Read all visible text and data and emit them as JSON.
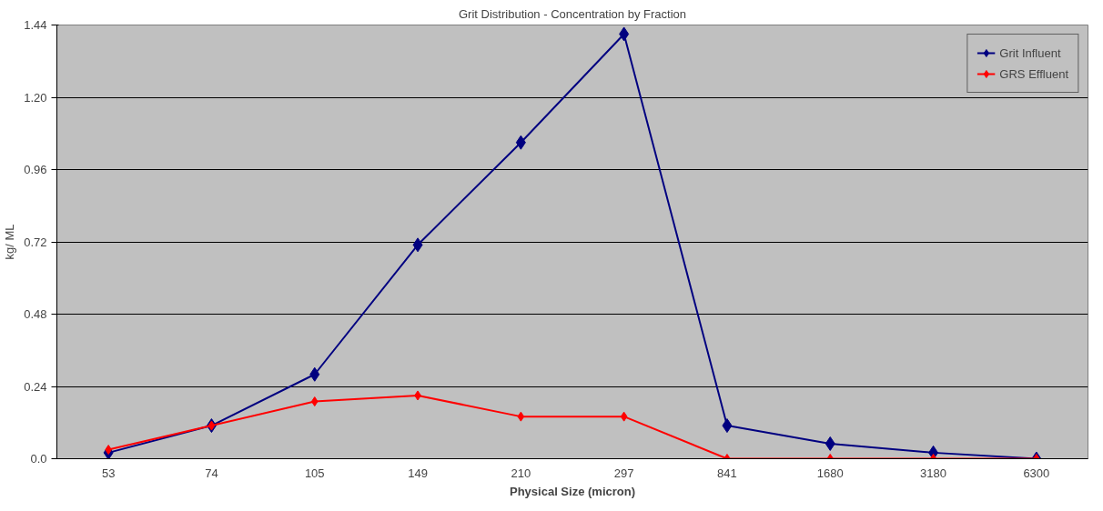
{
  "chart_data": {
    "type": "line",
    "title": "Grit Distribution - Concentration by Fraction",
    "xlabel": "Physical Size (micron)",
    "ylabel": "kg/ ML",
    "categories": [
      "53",
      "74",
      "105",
      "149",
      "210",
      "297",
      "841",
      "1680",
      "3180",
      "6300"
    ],
    "series": [
      {
        "name": "Grit Influent",
        "color": "#000080",
        "values": [
          0.02,
          0.11,
          0.28,
          0.71,
          1.05,
          1.41,
          0.11,
          0.05,
          0.02,
          0.0
        ]
      },
      {
        "name": "GRS Effluent",
        "color": "#ff0000",
        "values": [
          0.03,
          0.11,
          0.19,
          0.21,
          0.14,
          0.14,
          0.0,
          0.0,
          0.0,
          0.0
        ]
      }
    ],
    "ylim": [
      0,
      1.44
    ],
    "yticks": [
      {
        "value": 0,
        "label": "0.0"
      },
      0.24,
      0.48,
      0.72,
      0.96,
      {
        "value": 1.2,
        "label": "1.20"
      },
      1.44
    ],
    "grid": "y",
    "legend": "top right",
    "marker": "diamond",
    "line_style": "solid"
  }
}
